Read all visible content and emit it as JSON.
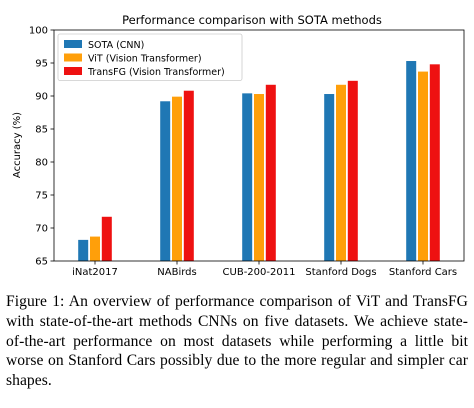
{
  "chart_data": {
    "type": "bar",
    "title": "Performance comparison with SOTA methods",
    "xlabel": "",
    "ylabel": "Accuracy (%)",
    "ylim": [
      65,
      100
    ],
    "yticks": [
      65,
      70,
      75,
      80,
      85,
      90,
      95,
      100
    ],
    "categories": [
      "iNat2017",
      "NABirds",
      "CUB-200-2011",
      "Stanford Dogs",
      "Stanford Cars"
    ],
    "series": [
      {
        "name": "SOTA (CNN)",
        "color": "#1f77b4",
        "values": [
          68.2,
          89.2,
          90.4,
          90.3,
          95.3
        ]
      },
      {
        "name": "ViT (Vision Transformer)",
        "color": "#ff9f0a",
        "values": [
          68.7,
          89.9,
          90.3,
          91.7,
          93.7
        ]
      },
      {
        "name": "TransFG (Vision Transformer)",
        "color": "#ee1111",
        "values": [
          71.7,
          90.8,
          91.7,
          92.3,
          94.8
        ]
      }
    ],
    "legend_position": "top-left",
    "grid": false
  },
  "caption": "Figure 1: An overview of performance comparison of ViT and TransFG with state-of-the-art methods CNNs on five datasets. We achieve state-of-the-art performance on most datasets while performing a little bit worse on Stanford Cars possibly due to the more regular and simpler car shapes."
}
